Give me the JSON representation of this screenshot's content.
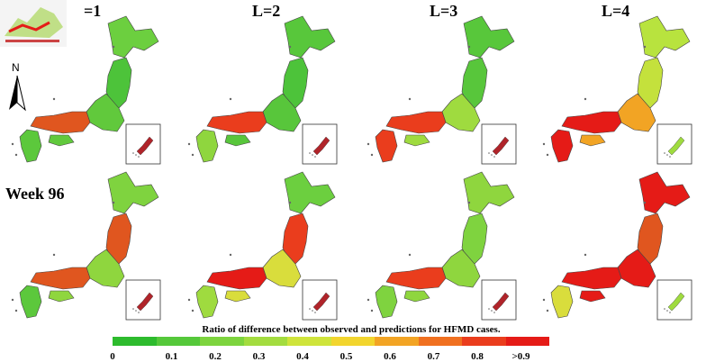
{
  "columns": [
    "=1",
    "L=2",
    "L=3",
    "L=4"
  ],
  "row_labels": [
    "Week 96"
  ],
  "compass": "N",
  "legend": {
    "title": "Ratio of difference between observed and predictions for HFMD cases.",
    "ticks": [
      "0",
      "0.1",
      "0.2",
      "0.3",
      "0.4",
      "0.5",
      "0.6",
      "0.7",
      "0.8",
      ">0.9"
    ],
    "colors": [
      "#2dbb2d",
      "#55c83a",
      "#7dd43e",
      "#a3dc3f",
      "#cfe43b",
      "#f2d52e",
      "#f2a424",
      "#f07020",
      "#ea3d1d",
      "#e51b17"
    ]
  },
  "maps": [
    {
      "row": 1,
      "column": "=1",
      "hokkaido": "#6ccf3f",
      "tohoku": "#4dc33a",
      "kanto": "#61c93c",
      "kansai": "#e0561f",
      "kyushu": "#5cc83c",
      "inset": "#b0242a"
    },
    {
      "row": 1,
      "column": "L=2",
      "hokkaido": "#58c73b",
      "tohoku": "#4dc33a",
      "kanto": "#58c63b",
      "kansai": "#ea3d1d",
      "kyushu": "#8fd63e",
      "inset": "#b0242a"
    },
    {
      "row": 1,
      "column": "L=3",
      "hokkaido": "#58c73b",
      "tohoku": "#58c63b",
      "kanto": "#9fdb3f",
      "kansai": "#ea3d1d",
      "kyushu": "#ea3d1d",
      "inset": "#b0242a"
    },
    {
      "row": 1,
      "column": "L=4",
      "hokkaido": "#b8e33e",
      "tohoku": "#c4e13c",
      "kanto": "#f2a424",
      "kansai": "#e51b17",
      "kyushu": "#e51b17",
      "inset": "#9fdb3f"
    },
    {
      "row": 2,
      "column": "=1",
      "hokkaido": "#7fd33f",
      "tohoku": "#e0561f",
      "kanto": "#8fd63e",
      "kansai": "#e0561f",
      "kyushu": "#5cc83c",
      "inset": "#b0242a"
    },
    {
      "row": 2,
      "column": "L=2",
      "hokkaido": "#6ccf3f",
      "tohoku": "#ea3d1d",
      "kanto": "#d9dd3c",
      "kansai": "#e51b17",
      "kyushu": "#9fdb3f",
      "inset": "#b0242a"
    },
    {
      "row": 2,
      "column": "L=3",
      "hokkaido": "#8fd63e",
      "tohoku": "#7fd33f",
      "kanto": "#8fd63e",
      "kansai": "#ea3d1d",
      "kyushu": "#7fd33f",
      "inset": "#b0242a"
    },
    {
      "row": 2,
      "column": "L=4",
      "hokkaido": "#e51b17",
      "tohoku": "#e0561f",
      "kanto": "#e51b17",
      "kansai": "#e51b17",
      "kyushu": "#d9dd3c",
      "inset": "#9fdb3f"
    }
  ]
}
